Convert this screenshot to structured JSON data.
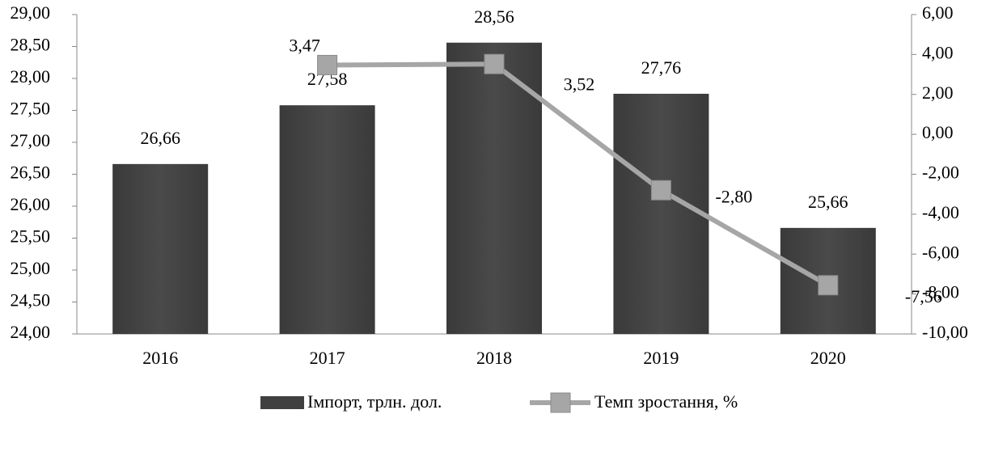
{
  "chart_data": {
    "type": "bar+line",
    "categories": [
      "2016",
      "2017",
      "2018",
      "2019",
      "2020"
    ],
    "series": [
      {
        "name": "Імпорт, трлн. дол.",
        "type": "bar",
        "color": "#404040",
        "values": [
          26.66,
          27.58,
          28.56,
          27.76,
          25.66
        ],
        "value_labels": [
          "26,66",
          "27,58",
          "28,56",
          "27,76",
          "25,66"
        ]
      },
      {
        "name": "Темп зростання, %",
        "type": "line",
        "axis": "y2",
        "color": "#a6a6a6",
        "values": [
          null,
          3.47,
          3.52,
          -2.8,
          -7.56
        ],
        "value_labels": [
          null,
          "3,47",
          "3,52",
          "-2,80",
          "-7,56"
        ]
      }
    ],
    "ylim": [
      24,
      29
    ],
    "yticks": [
      {
        "value": 24,
        "label": "24,00"
      },
      {
        "value": 24.5,
        "label": "24,50"
      },
      {
        "value": 25,
        "label": "25,00"
      },
      {
        "value": 25.5,
        "label": "25,50"
      },
      {
        "value": 26,
        "label": "26,00"
      },
      {
        "value": 26.5,
        "label": "26,50"
      },
      {
        "value": 27,
        "label": "27,00"
      },
      {
        "value": 27.5,
        "label": "27,50"
      },
      {
        "value": 28,
        "label": "28,00"
      },
      {
        "value": 28.5,
        "label": "28,50"
      },
      {
        "value": 29,
        "label": "29,00"
      }
    ],
    "y2lim": [
      -10,
      6
    ],
    "y2ticks": [
      {
        "value": -10,
        "label": "-10,00"
      },
      {
        "value": -8,
        "label": "-8,00"
      },
      {
        "value": -6,
        "label": "-6,00"
      },
      {
        "value": -4,
        "label": "-4,00"
      },
      {
        "value": -2,
        "label": "-2,00"
      },
      {
        "value": 0,
        "label": "0,00"
      },
      {
        "value": 2,
        "label": "2,00"
      },
      {
        "value": 4,
        "label": "4,00"
      },
      {
        "value": 6,
        "label": "6,00"
      }
    ],
    "grid": false,
    "legend": "bottom"
  }
}
